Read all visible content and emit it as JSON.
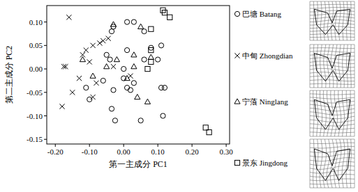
{
  "chart_data": {
    "type": "scatter",
    "x_label": "第一主成分 PC1",
    "y_label": "第二主成分 PC2",
    "xlim": [
      -0.225,
      0.31
    ],
    "ylim": [
      -0.16,
      0.135
    ],
    "xticks": [
      {
        "value": -0.2,
        "label": "-0.20"
      },
      {
        "value": -0.1,
        "label": "-0.10"
      },
      {
        "value": 0,
        "label": "0.00"
      },
      {
        "value": 0.1,
        "label": "0.10"
      },
      {
        "value": 0.2,
        "label": "0.20"
      },
      {
        "value": 0.3,
        "label": "0.30"
      }
    ],
    "yticks": [
      {
        "value": -0.15,
        "label": "-0.15"
      },
      {
        "value": -0.1,
        "label": "-0.10"
      },
      {
        "value": -0.05,
        "label": "-0.05"
      },
      {
        "value": 0,
        "label": "0.00"
      },
      {
        "value": 0.05,
        "label": "0.05"
      },
      {
        "value": 0.1,
        "label": "0.10"
      }
    ],
    "legend": "right",
    "grid": false,
    "series": [
      {
        "name": "巴塘 Batang",
        "marker": "circle",
        "color": "#000000",
        "x": [
          -0.03,
          -0.035,
          0.01,
          0.03,
          0.06,
          0.11,
          -0.11,
          -0.1,
          -0.06,
          -0.04,
          -0.03,
          -0.035,
          -0.025,
          0.0,
          0.01,
          0.03,
          0.05,
          0.02,
          0.11,
          0.12,
          0.115,
          0.01,
          -0.05,
          0.06,
          0.1,
          0.0,
          0.08
        ],
        "values": [
          0.09,
          0.08,
          0.1,
          0.1,
          0.08,
          0.05,
          -0.04,
          -0.065,
          -0.025,
          0.02,
          -0.045,
          -0.085,
          -0.11,
          -0.02,
          -0.04,
          -0.03,
          -0.11,
          -0.045,
          -0.04,
          -0.04,
          -0.1,
          0.04,
          0.03,
          0.02,
          0.02,
          0.0,
          0.045
        ]
      },
      {
        "name": "中甸 Zhongdian",
        "marker": "x",
        "color": "#000000",
        "x": [
          -0.16,
          -0.17,
          -0.175,
          -0.18,
          -0.15,
          -0.12,
          -0.11,
          -0.09,
          -0.1,
          -0.08,
          -0.13,
          -0.07,
          -0.06,
          -0.045,
          -0.09,
          -0.03,
          0.02
        ],
        "values": [
          0.11,
          0.005,
          0.005,
          -0.08,
          -0.05,
          0.03,
          0.04,
          0.05,
          0.015,
          -0.03,
          -0.02,
          0.055,
          0.06,
          0.065,
          -0.06,
          0.005,
          -0.015
        ]
      },
      {
        "name": "宁蒗 Ninglang",
        "marker": "triangle",
        "color": "#000000",
        "x": [
          -0.03,
          0.05,
          -0.12,
          -0.09,
          -0.05,
          -0.02,
          0.03,
          0.01,
          0.04,
          0.07,
          0.08,
          0.03
        ],
        "values": [
          0.095,
          0.09,
          0.02,
          -0.015,
          0.005,
          0.02,
          0.03,
          -0.02,
          -0.06,
          -0.07,
          0.025,
          0.005
        ]
      },
      {
        "name": "景东 Jingdong",
        "marker": "square",
        "color": "#000000",
        "x": [
          0.115,
          0.12,
          0.135,
          0.08,
          0.08,
          0.07,
          0.08,
          0.24,
          0.25
        ],
        "values": [
          0.125,
          0.12,
          0.11,
          0.085,
          0.04,
          0.0,
          0.015,
          -0.125,
          -0.135
        ]
      }
    ]
  }
}
